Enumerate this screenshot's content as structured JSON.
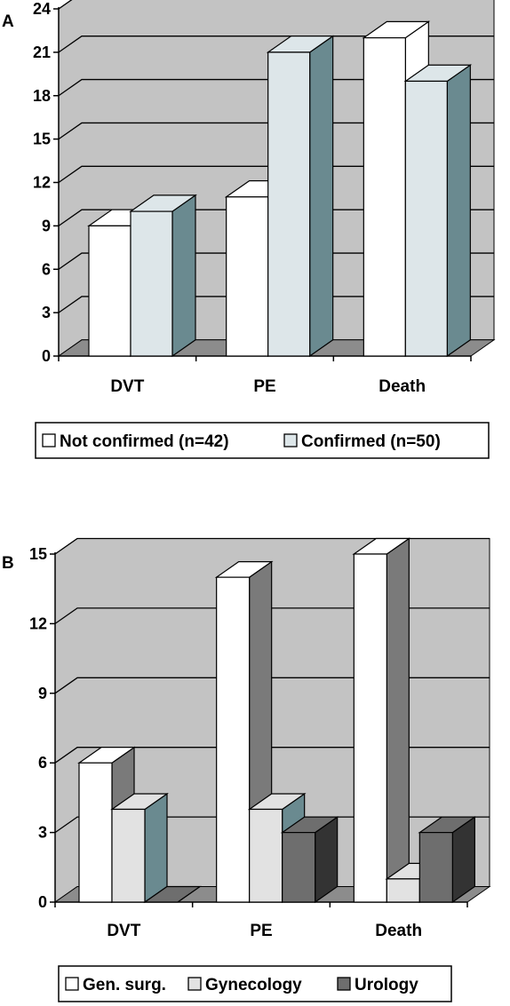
{
  "chart_data": [
    {
      "type": "bar",
      "panel_label": "A",
      "categories": [
        "DVT",
        "PE",
        "Death"
      ],
      "series": [
        {
          "name": "Not confirmed (n=42)",
          "values": [
            9,
            11,
            22
          ]
        },
        {
          "name": "Confirmed (n=50)",
          "values": [
            10,
            21,
            19
          ]
        }
      ],
      "ylim": [
        0,
        24
      ],
      "yticks": [
        0,
        3,
        6,
        9,
        12,
        15,
        18,
        21,
        24
      ],
      "grid": true,
      "legend_position": "bottom",
      "colors": {
        "series": [
          "#ffffff",
          "#dde6e9"
        ],
        "series_side": [
          "#ffffff",
          "#6a8a90"
        ],
        "wall": "#c3c3c3",
        "floor": "#8c8c8c"
      }
    },
    {
      "type": "bar",
      "panel_label": "B",
      "categories": [
        "DVT",
        "PE",
        "Death"
      ],
      "series": [
        {
          "name": "Gen. surg.",
          "values": [
            6,
            14,
            15
          ]
        },
        {
          "name": "Gynecology",
          "values": [
            4,
            4,
            1
          ]
        },
        {
          "name": "Urology",
          "values": [
            0,
            3,
            3
          ]
        }
      ],
      "ylim": [
        0,
        15
      ],
      "yticks": [
        0,
        3,
        6,
        9,
        12,
        15
      ],
      "grid": true,
      "legend_position": "bottom",
      "colors": {
        "series": [
          "#ffffff",
          "#e2e2e2",
          "#6e6e6e"
        ],
        "series_side": [
          "#7a7a7a",
          "#6a8a90",
          "#333333"
        ],
        "wall": "#c3c3c3",
        "floor": "#8c8c8c"
      }
    }
  ]
}
